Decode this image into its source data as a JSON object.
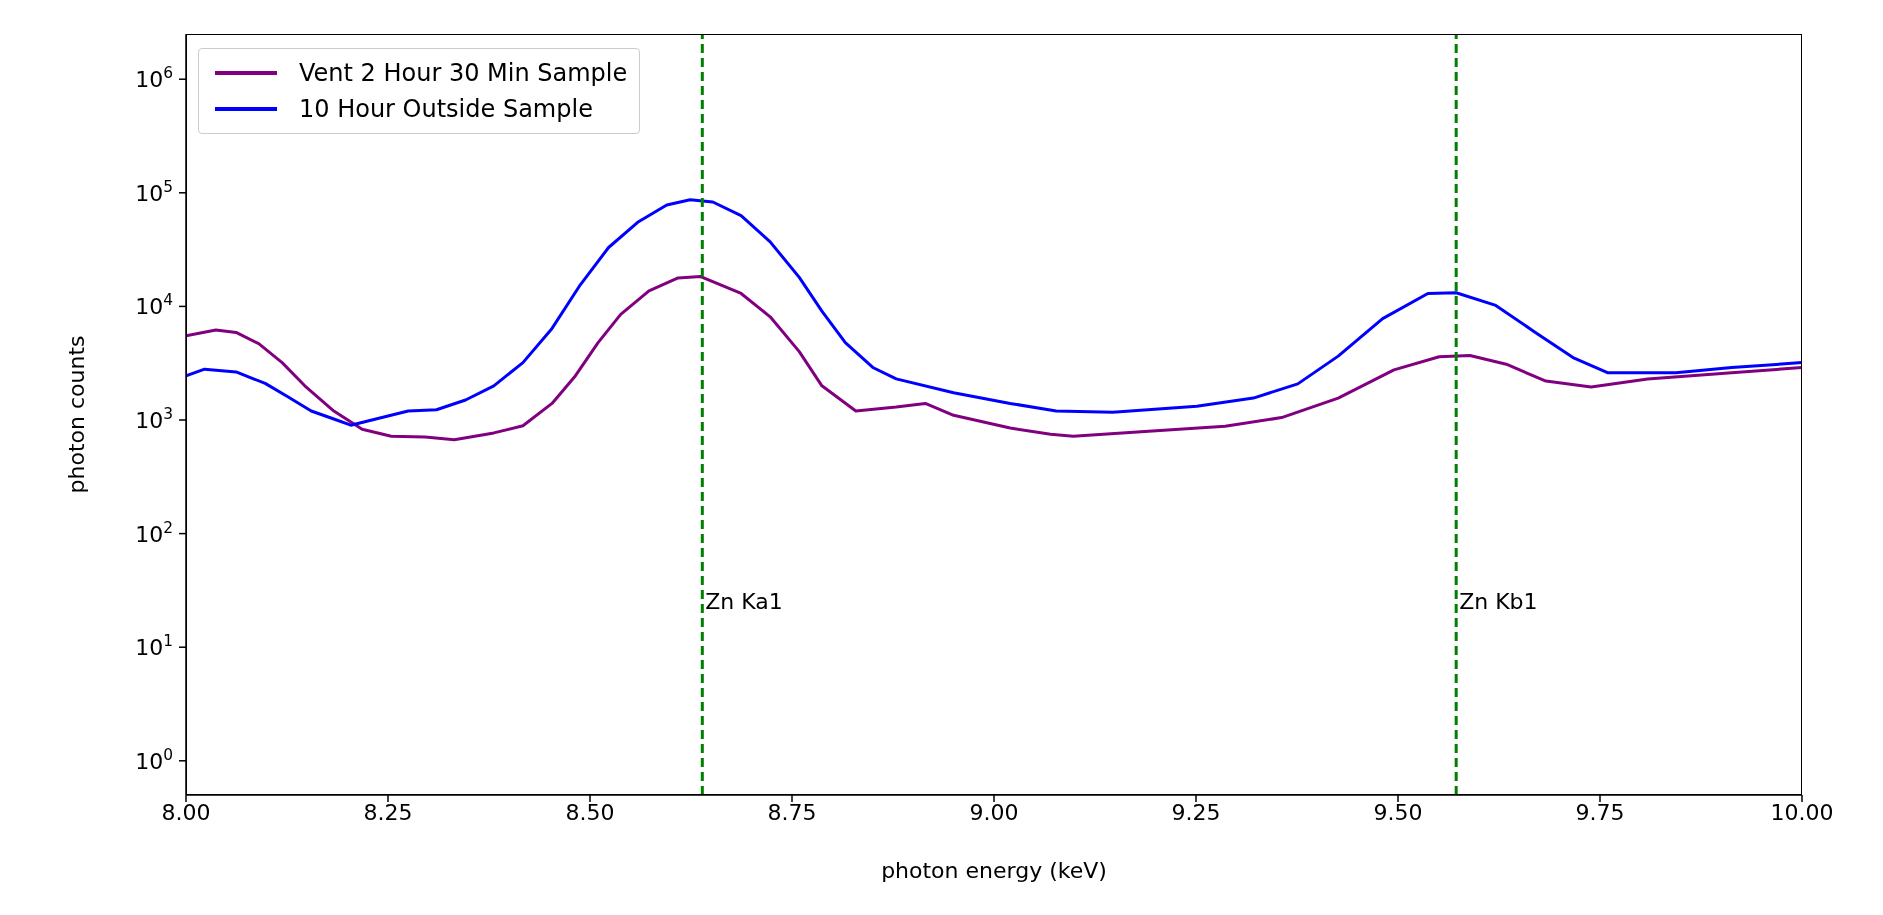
{
  "chart_data": {
    "type": "line",
    "xlabel": "photon energy (keV)",
    "ylabel": "photon counts",
    "xlim": [
      8.0,
      10.0
    ],
    "xticks": [
      {
        "value": 8.0,
        "label": "8.00"
      },
      {
        "value": 8.25,
        "label": "8.25"
      },
      {
        "value": 8.5,
        "label": "8.50"
      },
      {
        "value": 8.75,
        "label": "8.75"
      },
      {
        "value": 9.0,
        "label": "9.00"
      },
      {
        "value": 9.25,
        "label": "9.25"
      },
      {
        "value": 9.5,
        "label": "9.50"
      },
      {
        "value": 9.75,
        "label": "9.75"
      },
      {
        "value": 10.0,
        "label": "10.00"
      }
    ],
    "ylim": [
      0.5,
      2500000
    ],
    "yticks": [
      {
        "value": 1,
        "label": "10$^{0}$"
      },
      {
        "value": 10,
        "label": "10$^{1}$"
      },
      {
        "value": 100,
        "label": "10$^{2}$"
      },
      {
        "value": 1000,
        "label": "10$^{3}$"
      },
      {
        "value": 10000,
        "label": "10$^{4}$"
      },
      {
        "value": 100000,
        "label": "10$^{5}$"
      },
      {
        "value": 1000000,
        "label": "10$^{6}$"
      }
    ],
    "log": "y",
    "legend": "top left",
    "marker": "none",
    "line_style": "solid",
    "series": [
      {
        "name": "Vent 2 Hour 30 Min Sample",
        "color": "#800080",
        "x": [
          8.0,
          8.037,
          8.062,
          8.09,
          8.119,
          8.147,
          8.183,
          8.218,
          8.254,
          8.296,
          8.332,
          8.381,
          8.417,
          8.453,
          8.481,
          8.51,
          8.538,
          8.573,
          8.609,
          8.637,
          8.687,
          8.723,
          8.759,
          8.787,
          8.829,
          8.879,
          8.915,
          8.95,
          9.02,
          9.07,
          9.098,
          9.182,
          9.286,
          9.356,
          9.426,
          9.495,
          9.551,
          9.589,
          9.634,
          9.683,
          9.739,
          9.809,
          9.913,
          10.0
        ],
        "values": [
          5500,
          6200,
          5900,
          4700,
          3200,
          2000,
          1200,
          830,
          720,
          710,
          670,
          770,
          890,
          1400,
          2400,
          4800,
          8500,
          13700,
          17800,
          18300,
          13000,
          8100,
          4000,
          2000,
          1200,
          1300,
          1400,
          1100,
          850,
          750,
          720,
          790,
          880,
          1050,
          1560,
          2760,
          3600,
          3700,
          3100,
          2200,
          1950,
          2300,
          2600,
          2900
        ]
      },
      {
        "name": "10 Hour Outside Sample",
        "color": "#0000ff",
        "x": [
          8.0,
          8.023,
          8.062,
          8.098,
          8.126,
          8.155,
          8.183,
          8.204,
          8.24,
          8.275,
          8.31,
          8.346,
          8.381,
          8.417,
          8.453,
          8.488,
          8.523,
          8.559,
          8.595,
          8.624,
          8.652,
          8.687,
          8.723,
          8.759,
          8.787,
          8.816,
          8.85,
          8.879,
          8.95,
          9.02,
          9.077,
          9.147,
          9.251,
          9.321,
          9.376,
          9.426,
          9.481,
          9.537,
          9.572,
          9.621,
          9.67,
          9.718,
          9.76,
          9.844,
          9.913,
          10.0
        ],
        "values": [
          2450,
          2800,
          2650,
          2100,
          1600,
          1200,
          1020,
          900,
          1040,
          1200,
          1230,
          1500,
          2000,
          3200,
          6400,
          15500,
          33000,
          55000,
          78000,
          87000,
          83000,
          63000,
          37000,
          18000,
          9100,
          4800,
          2900,
          2300,
          1740,
          1400,
          1200,
          1170,
          1320,
          1560,
          2080,
          3650,
          7800,
          13000,
          13200,
          10200,
          5900,
          3500,
          2600,
          2600,
          2900,
          3200
        ]
      }
    ],
    "ref_lines": [
      {
        "axis": "x",
        "value": 8.639,
        "label": "Zn Ka1",
        "color": "#008000",
        "line_style": "dashed"
      },
      {
        "axis": "x",
        "value": 9.572,
        "label": "Zn Kb1",
        "color": "#008000",
        "line_style": "dashed"
      }
    ]
  }
}
